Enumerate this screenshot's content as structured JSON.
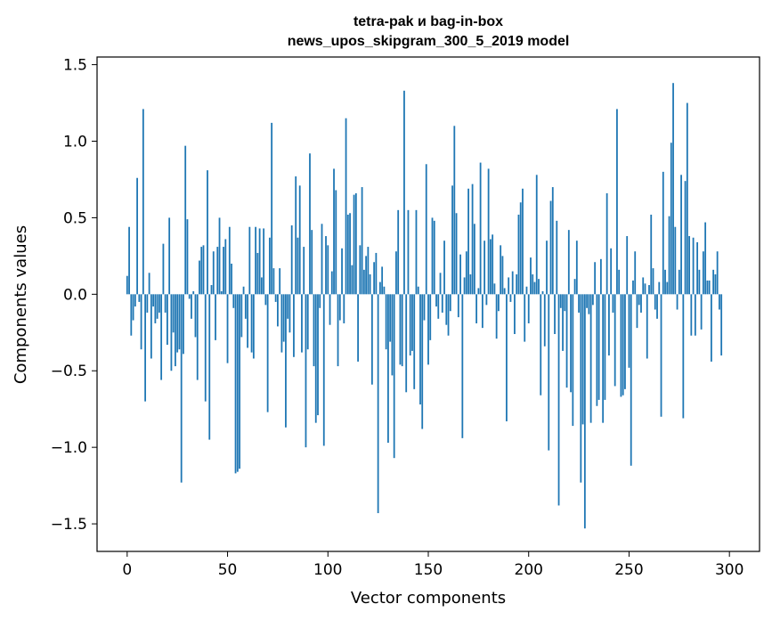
{
  "chart_data": {
    "type": "bar",
    "title": "tetra-pak и bag-in-box",
    "subtitle": "news_upos_skipgram_300_5_2019 model",
    "xlabel": "Vector components",
    "ylabel": "Components values",
    "xlim": [
      -15,
      315
    ],
    "ylim": [
      -1.68,
      1.55
    ],
    "xticks": [
      0,
      50,
      100,
      150,
      200,
      250,
      300
    ],
    "yticks": [
      -1.5,
      -1.0,
      -0.5,
      0.0,
      0.5,
      1.0,
      1.5
    ],
    "ytick_labels": [
      "−1.5",
      "−1.0",
      "−0.5",
      "0.0",
      "0.5",
      "1.0",
      "1.5"
    ],
    "bar_color": "#1f77b4",
    "grid": false,
    "values": [
      0.12,
      0.44,
      -0.27,
      -0.17,
      -0.08,
      0.76,
      -0.05,
      -0.36,
      1.21,
      -0.7,
      -0.12,
      0.14,
      -0.42,
      -0.08,
      -0.19,
      -0.16,
      -0.12,
      -0.56,
      0.33,
      -0.12,
      -0.33,
      0.5,
      -0.5,
      -0.25,
      -0.47,
      -0.38,
      -0.36,
      -1.23,
      -0.39,
      0.97,
      0.49,
      -0.03,
      -0.16,
      0.02,
      -0.28,
      -0.56,
      0.22,
      0.31,
      0.32,
      -0.7,
      0.81,
      -0.95,
      0.06,
      0.28,
      -0.3,
      0.31,
      0.5,
      0.02,
      0.31,
      0.36,
      -0.45,
      0.44,
      0.2,
      -0.09,
      -1.17,
      -1.16,
      -1.14,
      -0.28,
      0.05,
      -0.16,
      -0.35,
      0.44,
      -0.38,
      -0.42,
      0.44,
      0.27,
      0.43,
      0.11,
      0.43,
      -0.07,
      -0.77,
      0.37,
      1.12,
      0.17,
      -0.05,
      -0.21,
      0.17,
      -0.38,
      -0.31,
      -0.87,
      -0.16,
      -0.25,
      0.45,
      -0.41,
      0.77,
      0.37,
      0.71,
      -0.38,
      0.31,
      -1.0,
      -0.36,
      0.92,
      0.42,
      -0.47,
      -0.84,
      -0.79,
      -0.09,
      0.46,
      -0.99,
      0.38,
      0.32,
      -0.2,
      0.15,
      0.82,
      0.68,
      -0.47,
      -0.17,
      0.3,
      -0.19,
      1.15,
      0.52,
      0.53,
      0.19,
      0.65,
      0.66,
      -0.44,
      0.32,
      0.7,
      0.16,
      0.25,
      0.31,
      0.13,
      -0.59,
      0.21,
      0.27,
      -1.43,
      0.08,
      0.18,
      0.05,
      -0.36,
      -0.97,
      -0.31,
      -0.53,
      -1.07,
      0.28,
      0.55,
      -0.46,
      -0.47,
      1.33,
      -0.64,
      0.55,
      -0.4,
      -0.37,
      -0.62,
      0.55,
      0.05,
      -0.72,
      -0.88,
      -0.17,
      0.85,
      -0.46,
      -0.3,
      0.5,
      0.48,
      -0.08,
      -0.16,
      0.14,
      -0.12,
      0.35,
      -0.2,
      -0.27,
      -0.11,
      0.71,
      1.1,
      0.53,
      -0.15,
      0.26,
      -0.94,
      0.11,
      0.28,
      0.69,
      0.13,
      0.72,
      0.46,
      -0.19,
      0.04,
      0.86,
      -0.22,
      0.35,
      -0.07,
      0.82,
      0.36,
      0.39,
      0.07,
      -0.29,
      -0.11,
      0.32,
      0.25,
      0.04,
      -0.83,
      0.11,
      -0.05,
      0.15,
      -0.26,
      0.13,
      0.52,
      0.6,
      0.69,
      -0.31,
      0.05,
      -0.19,
      0.24,
      0.13,
      0.08,
      0.78,
      0.1,
      -0.66,
      0.02,
      -0.34,
      0.35,
      -1.02,
      0.61,
      0.7,
      -0.26,
      0.48,
      -1.38,
      -0.09,
      -0.37,
      -0.11,
      -0.61,
      0.42,
      -0.64,
      -0.86,
      0.1,
      0.35,
      -0.12,
      -1.23,
      -0.85,
      -1.53,
      -0.09,
      -0.13,
      -0.84,
      -0.07,
      0.21,
      -0.73,
      -0.69,
      0.23,
      -0.84,
      -0.69,
      0.66,
      -0.4,
      0.3,
      -0.12,
      -0.6,
      1.21,
      0.16,
      -0.67,
      -0.66,
      -0.62,
      0.38,
      -0.48,
      -1.12,
      0.09,
      0.28,
      -0.22,
      -0.07,
      -0.12,
      0.11,
      0.07,
      -0.42,
      0.06,
      0.52,
      0.17,
      -0.1,
      -0.16,
      0.08,
      -0.8,
      0.8,
      0.16,
      0.08,
      0.51,
      0.99,
      1.38,
      0.44,
      -0.1,
      0.16,
      0.78,
      -0.81,
      0.74,
      1.25,
      0.38,
      -0.27,
      0.37,
      -0.27,
      0.34,
      0.16,
      -0.23,
      0.28,
      0.47,
      0.09,
      0.09,
      -0.44,
      0.16,
      0.13,
      0.28,
      -0.1,
      -0.4
    ]
  }
}
